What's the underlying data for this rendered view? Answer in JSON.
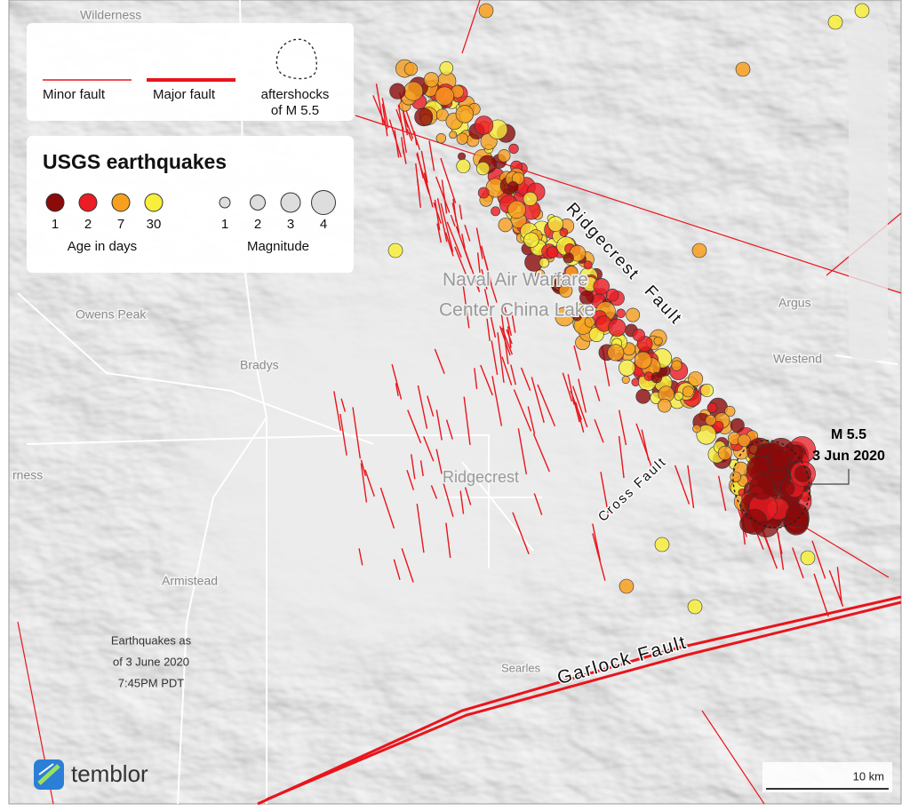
{
  "legend": {
    "minor_fault": "Minor fault",
    "major_fault": "Major fault",
    "aftershocks": [
      "aftershocks",
      "of M 5.5"
    ]
  },
  "earthquakes_legend": {
    "title": "USGS earthquakes",
    "age": {
      "label": "Age in days",
      "values": [
        1,
        2,
        7,
        30
      ],
      "colors": [
        "#8b0a0a",
        "#ec1c24",
        "#f7a020",
        "#f8ee3c"
      ]
    },
    "magnitude": {
      "label": "Magnitude",
      "values": [
        1,
        2,
        3,
        4
      ]
    }
  },
  "places": [
    "Wilderness",
    "Owens Peak",
    "Bradys",
    "Argus",
    "Westend",
    "Ridgecrest",
    "rness",
    "Armistead",
    "Searles"
  ],
  "naval": [
    "Naval Air Warfare",
    "Center China Lake"
  ],
  "faults": {
    "ridgecrest": [
      "Ridgecrest",
      "Fault"
    ],
    "cross": "Cross Fault",
    "garlock": "Garlock Fault"
  },
  "event": [
    "M 5.5",
    "3 Jun 2020"
  ],
  "note": [
    "Earthquakes as",
    "of 3 June 2020",
    "7:45PM PDT"
  ],
  "logo": "temblor",
  "scale": "10 km"
}
